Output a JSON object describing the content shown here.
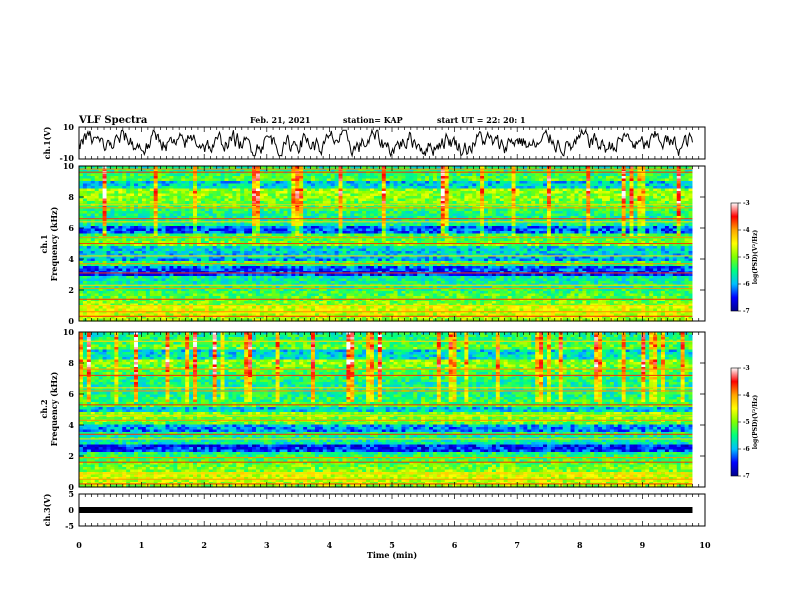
{
  "header": {
    "title": "VLF Spectra",
    "date": "Feb. 21, 2021",
    "station": "station= KAP",
    "start": "start  UT =  22: 20: 1"
  },
  "chart_data": [
    {
      "type": "line",
      "panel": "ch1-waveform",
      "ylabel": "ch.1(V)",
      "ylim": [
        -10,
        10
      ],
      "yticks": [
        "10",
        "-10"
      ],
      "xlim": [
        0,
        10
      ],
      "data_end_min": 9.8
    },
    {
      "type": "heatmap",
      "panel": "ch1-spectrogram",
      "ylabel": "ch.1\nFrequency (kHz)",
      "ylabel_top": "ch.1",
      "ylabel_bottom": "Frequency (kHz)",
      "ylim": [
        0,
        10
      ],
      "yticks": [
        "0",
        "2",
        "4",
        "6",
        "8",
        "10"
      ],
      "xlim": [
        0,
        10
      ],
      "data_end_min": 9.8,
      "colorbar": {
        "label": "log(PSD)(V²/Hz)",
        "range": [
          -7,
          -3
        ],
        "ticks": [
          "-3",
          "-4",
          "-5",
          "-6",
          "-7"
        ]
      },
      "bright_lines_khz": [
        0.3,
        0.6,
        1.0,
        1.4,
        2.1,
        2.3,
        3.1,
        3.7,
        4.2,
        5.0,
        5.4,
        6.4,
        6.6,
        7.3,
        7.5,
        9.6,
        9.8
      ],
      "dark_bands_khz": [
        [
          2.9,
          3.5
        ],
        [
          3.8,
          4.3
        ],
        [
          4.4,
          4.8
        ],
        [
          5.6,
          6.2
        ],
        [
          8.5,
          9.0
        ]
      ]
    },
    {
      "type": "heatmap",
      "panel": "ch2-spectrogram",
      "ylabel": "ch.2\nFrequency (kHz)",
      "ylabel_top": "ch.2",
      "ylabel_bottom": "Frequency (kHz)",
      "ylim": [
        0,
        10
      ],
      "yticks": [
        "0",
        "2",
        "4",
        "6",
        "8",
        "10"
      ],
      "xlim": [
        0,
        10
      ],
      "data_end_min": 9.8,
      "colorbar": {
        "label": "log(PSD)(V²/Hz)",
        "range": [
          -7,
          -3
        ],
        "ticks": [
          "-3",
          "-4",
          "-5",
          "-6",
          "-7"
        ]
      },
      "bright_lines_khz": [
        0.2,
        0.5,
        0.9,
        1.6,
        1.9,
        3.1,
        3.4,
        4.3,
        4.6,
        5.3,
        6.2,
        6.4,
        7.2,
        7.6,
        9.4
      ],
      "dark_bands_khz": [
        [
          2.2,
          2.8
        ],
        [
          3.5,
          4.1
        ],
        [
          4.8,
          5.2
        ],
        [
          8.2,
          8.8
        ]
      ]
    },
    {
      "type": "line",
      "panel": "ch3-waveform",
      "ylabel": "ch.3(V)",
      "ylim": [
        -5,
        5
      ],
      "yticks": [
        "5",
        "0",
        "-5"
      ],
      "xlim": [
        0,
        10
      ],
      "data_end_min": 9.8,
      "approx_level_v": 0.0
    }
  ],
  "xaxis": {
    "label": "Time (min)",
    "ticks": [
      "0",
      "1",
      "2",
      "3",
      "4",
      "5",
      "6",
      "7",
      "8",
      "9",
      "10"
    ]
  },
  "colors": {
    "colormap": [
      "#00008b",
      "#0000ff",
      "#00bfff",
      "#00ff7f",
      "#7fff00",
      "#ffff00",
      "#ffa500",
      "#ff0000",
      "#ffffff"
    ],
    "line": "#000000"
  }
}
